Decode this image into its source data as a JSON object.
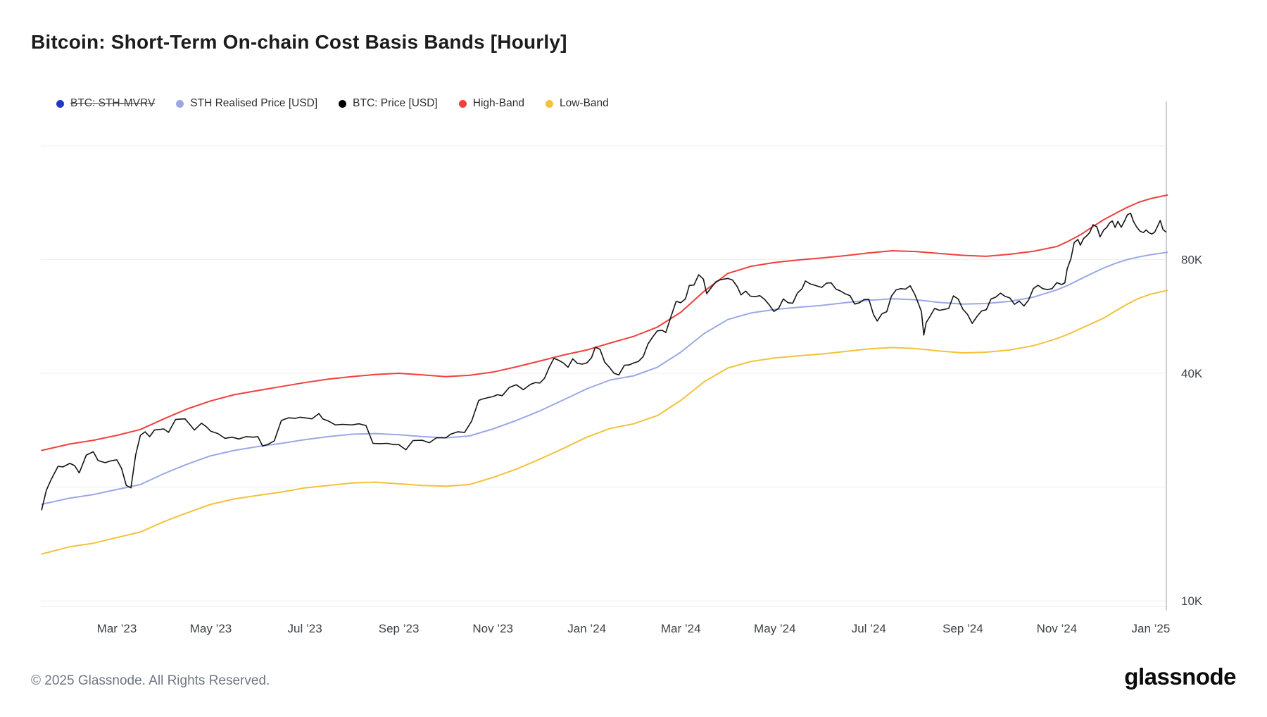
{
  "page": {
    "title": "Bitcoin: Short-Term On-chain Cost Basis Bands [Hourly]",
    "footer_copyright": "© 2025 Glassnode. All Rights Reserved.",
    "brand": "glassnode"
  },
  "legend": [
    {
      "label": "BTC: STH-MVRV",
      "color": "#2237c5",
      "disabled": true
    },
    {
      "label": "STH Realised Price [USD]",
      "color": "#9aa8e6",
      "disabled": false
    },
    {
      "label": "BTC: Price [USD]",
      "color": "#000000",
      "disabled": false
    },
    {
      "label": "High-Band",
      "color": "#ef403c",
      "disabled": false
    },
    {
      "label": "Low-Band",
      "color": "#f3c13c",
      "disabled": false
    }
  ],
  "chart_data": {
    "type": "line",
    "title": "Bitcoin: Short-Term On-chain Cost Basis Bands [Hourly]",
    "x_unit": "months since 2023-01-01",
    "xlim": [
      0.4,
      24.38
    ],
    "ylim": [
      9700,
      192000
    ],
    "grid": "horizontal-only",
    "legend_position": "top-left",
    "x_axis": {
      "ticks": [
        {
          "m": 2,
          "label": "Mar ’23"
        },
        {
          "m": 4,
          "label": "May ’23"
        },
        {
          "m": 6,
          "label": "Jul ’23"
        },
        {
          "m": 8,
          "label": "Sep ’23"
        },
        {
          "m": 10,
          "label": "Nov ’23"
        },
        {
          "m": 12,
          "label": "Jan ’24"
        },
        {
          "m": 14,
          "label": "Mar ’24"
        },
        {
          "m": 16,
          "label": "May ’24"
        },
        {
          "m": 18,
          "label": "Jul ’24"
        },
        {
          "m": 20,
          "label": "Sep ’24"
        },
        {
          "m": 22,
          "label": "Nov ’24"
        },
        {
          "m": 24,
          "label": "Jan ’25"
        }
      ]
    },
    "y_axis": {
      "scale": "log",
      "gridlines": [
        {
          "v": 10000,
          "label": "10K"
        },
        {
          "v": 20000,
          "label": ""
        },
        {
          "v": 40000,
          "label": "40K"
        },
        {
          "v": 80000,
          "label": "80K"
        },
        {
          "v": 160000,
          "label": ""
        }
      ]
    },
    "series": [
      {
        "name": "STH Realised Price [USD]",
        "color": "#9aa8e6",
        "width": 2,
        "x": [
          0.4,
          1,
          1.5,
          2,
          2.5,
          3,
          3.5,
          4,
          4.5,
          5,
          5.5,
          6,
          6.5,
          7,
          7.5,
          8,
          8.5,
          9,
          9.5,
          10,
          10.5,
          11,
          11.5,
          12,
          12.5,
          13,
          13.5,
          14,
          14.5,
          15,
          15.5,
          16,
          16.5,
          17,
          17.5,
          18,
          18.5,
          19,
          19.5,
          20,
          20.5,
          21,
          21.5,
          22,
          22.25,
          22.5,
          22.75,
          23,
          23.25,
          23.5,
          23.75,
          24,
          24.35
        ],
        "y": [
          18000,
          18700,
          19100,
          19700,
          20300,
          21700,
          23000,
          24200,
          25000,
          25600,
          26100,
          26700,
          27200,
          27600,
          27700,
          27500,
          27200,
          27000,
          27300,
          28500,
          30000,
          31800,
          34000,
          36400,
          38400,
          39400,
          41500,
          45500,
          51000,
          55500,
          57800,
          59000,
          59800,
          60500,
          61500,
          62400,
          63000,
          62600,
          61600,
          61000,
          61200,
          62000,
          63600,
          66500,
          68500,
          71000,
          73500,
          76000,
          78200,
          80000,
          81300,
          82400,
          83600
        ]
      },
      {
        "name": "Low-Band",
        "color": "#f3c13c",
        "width": 2,
        "x": [
          0.4,
          1,
          1.5,
          2,
          2.5,
          3,
          3.5,
          4,
          4.5,
          5,
          5.5,
          6,
          6.5,
          7,
          7.5,
          8,
          8.5,
          9,
          9.5,
          10,
          10.5,
          11,
          11.5,
          12,
          12.5,
          13,
          13.5,
          14,
          14.5,
          15,
          15.5,
          16,
          16.5,
          17,
          17.5,
          18,
          18.5,
          19,
          19.5,
          20,
          20.5,
          21,
          21.5,
          22,
          22.25,
          22.5,
          22.75,
          23,
          23.25,
          23.5,
          23.75,
          24,
          24.35
        ],
        "y": [
          13300,
          13900,
          14200,
          14700,
          15200,
          16200,
          17100,
          18000,
          18600,
          19000,
          19400,
          19900,
          20200,
          20500,
          20600,
          20400,
          20200,
          20100,
          20300,
          21200,
          22300,
          23700,
          25300,
          27100,
          28600,
          29400,
          30900,
          33900,
          38000,
          41300,
          43000,
          43900,
          44500,
          45000,
          45700,
          46400,
          46800,
          46500,
          45800,
          45300,
          45500,
          46100,
          47300,
          49400,
          50800,
          52500,
          54200,
          56000,
          58500,
          61000,
          63200,
          64800,
          66300
        ]
      },
      {
        "name": "High-Band",
        "color": "#ef403c",
        "width": 2,
        "x": [
          0.4,
          1,
          1.5,
          2,
          2.5,
          3,
          3.5,
          4,
          4.5,
          5,
          5.5,
          6,
          6.5,
          7,
          7.5,
          8,
          8.5,
          9,
          9.5,
          10,
          10.5,
          11,
          11.5,
          12,
          12.5,
          13,
          13.5,
          14,
          14.5,
          15,
          15.5,
          16,
          16.5,
          17,
          17.5,
          18,
          18.5,
          19,
          19.5,
          20,
          20.5,
          21,
          21.5,
          22,
          22.25,
          22.5,
          22.75,
          23,
          23.25,
          23.5,
          23.75,
          24,
          24.35
        ],
        "y": [
          25000,
          26000,
          26600,
          27400,
          28400,
          30300,
          32200,
          33800,
          35100,
          36000,
          36900,
          37800,
          38600,
          39200,
          39700,
          40000,
          39600,
          39200,
          39500,
          40300,
          41600,
          43100,
          44700,
          46100,
          48100,
          50100,
          53000,
          58000,
          66000,
          73500,
          76800,
          78600,
          79800,
          80800,
          81900,
          83300,
          84400,
          84000,
          83000,
          82100,
          81600,
          82600,
          84100,
          86600,
          89500,
          93000,
          97500,
          102000,
          106000,
          110000,
          113500,
          116000,
          118500
        ]
      },
      {
        "name": "BTC: Price [USD]",
        "color": "#141414",
        "width": 1.6,
        "x": [
          0.4,
          0.5,
          0.6,
          0.75,
          0.85,
          1.0,
          1.1,
          1.2,
          1.35,
          1.5,
          1.6,
          1.75,
          1.9,
          2.0,
          2.1,
          2.2,
          2.3,
          2.4,
          2.5,
          2.6,
          2.7,
          2.8,
          3.0,
          3.1,
          3.25,
          3.45,
          3.55,
          3.65,
          3.8,
          3.9,
          4.0,
          4.15,
          4.3,
          4.45,
          4.6,
          4.75,
          4.9,
          5.0,
          5.1,
          5.2,
          5.35,
          5.5,
          5.65,
          5.8,
          5.9,
          6.0,
          6.15,
          6.3,
          6.38,
          6.5,
          6.65,
          6.8,
          7.0,
          7.15,
          7.3,
          7.45,
          7.6,
          7.75,
          7.9,
          8.0,
          8.15,
          8.3,
          8.5,
          8.65,
          8.8,
          9.0,
          9.1,
          9.25,
          9.4,
          9.55,
          9.7,
          9.78,
          9.9,
          10.0,
          10.1,
          10.2,
          10.35,
          10.5,
          10.65,
          10.8,
          10.9,
          11.0,
          11.1,
          11.2,
          11.3,
          11.4,
          11.5,
          11.6,
          11.7,
          11.8,
          11.9,
          12.0,
          12.1,
          12.18,
          12.28,
          12.38,
          12.48,
          12.58,
          12.68,
          12.8,
          12.9,
          13.0,
          13.1,
          13.2,
          13.3,
          13.4,
          13.5,
          13.6,
          13.68,
          13.8,
          13.9,
          14.0,
          14.1,
          14.18,
          14.28,
          14.38,
          14.48,
          14.55,
          14.65,
          14.75,
          14.85,
          15.0,
          15.1,
          15.2,
          15.28,
          15.38,
          15.48,
          15.58,
          15.68,
          15.78,
          15.88,
          15.98,
          16.08,
          16.18,
          16.28,
          16.38,
          16.48,
          16.58,
          16.65,
          16.75,
          16.85,
          17.0,
          17.1,
          17.2,
          17.3,
          17.4,
          17.5,
          17.6,
          17.7,
          17.8,
          17.9,
          18.0,
          18.1,
          18.18,
          18.28,
          18.38,
          18.48,
          18.58,
          18.68,
          18.78,
          18.88,
          18.98,
          19.05,
          19.12,
          19.17,
          19.22,
          19.3,
          19.4,
          19.5,
          19.6,
          19.7,
          19.8,
          19.9,
          20.0,
          20.1,
          20.2,
          20.3,
          20.4,
          20.5,
          20.6,
          20.7,
          20.8,
          20.9,
          21.0,
          21.1,
          21.2,
          21.3,
          21.4,
          21.5,
          21.6,
          21.7,
          21.8,
          21.9,
          22.0,
          22.1,
          22.17,
          22.22,
          22.3,
          22.37,
          22.45,
          22.5,
          22.57,
          22.63,
          22.7,
          22.77,
          22.85,
          22.92,
          23.0,
          23.06,
          23.12,
          23.18,
          23.24,
          23.3,
          23.37,
          23.44,
          23.5,
          23.57,
          23.63,
          23.7,
          23.77,
          23.84,
          23.9,
          23.96,
          24.02,
          24.08,
          24.14,
          24.2,
          24.26,
          24.32
        ],
        "y": [
          17400,
          19600,
          20900,
          22700,
          22600,
          23100,
          22800,
          21800,
          24300,
          24800,
          23500,
          23200,
          23500,
          23600,
          22400,
          20200,
          19900,
          24300,
          27400,
          28000,
          27200,
          28300,
          28500,
          27900,
          30200,
          30300,
          29300,
          28300,
          29500,
          28900,
          28100,
          27700,
          26900,
          27100,
          26800,
          27200,
          27100,
          27200,
          25700,
          25900,
          26500,
          30000,
          30500,
          30400,
          30600,
          30500,
          30300,
          31300,
          30300,
          29900,
          29200,
          29300,
          29200,
          29400,
          29100,
          26100,
          26050,
          26100,
          25900,
          25900,
          25100,
          26550,
          26600,
          26200,
          27000,
          27000,
          27600,
          28000,
          27900,
          29900,
          33900,
          34200,
          34500,
          34700,
          35100,
          34900,
          36700,
          37300,
          36200,
          37400,
          37800,
          37700,
          38800,
          41500,
          43800,
          43300,
          42600,
          41500,
          43700,
          42500,
          42300,
          42600,
          44000,
          46900,
          46300,
          42800,
          41500,
          40000,
          39600,
          42000,
          42100,
          42600,
          43000,
          44300,
          47800,
          49900,
          51800,
          52000,
          51300,
          57000,
          62000,
          61500,
          63000,
          68300,
          68500,
          72900,
          71000,
          65000,
          67500,
          69900,
          70800,
          71300,
          70600,
          67800,
          64500,
          66000,
          64000,
          63800,
          64200,
          62800,
          60700,
          58300,
          59400,
          62900,
          61500,
          61300,
          65200,
          67000,
          70200,
          69000,
          68400,
          67500,
          69300,
          69400,
          66800,
          66000,
          64900,
          64200,
          61000,
          61500,
          62700,
          62800,
          57200,
          55000,
          57500,
          58200,
          64000,
          66500,
          67000,
          66800,
          68200,
          64600,
          61400,
          58200,
          50500,
          54500,
          56500,
          59400,
          58700,
          59000,
          59400,
          64100,
          62900,
          59100,
          57300,
          54200,
          56500,
          58500,
          58900,
          62900,
          63600,
          65200,
          63900,
          63300,
          60900,
          62100,
          60300,
          62500,
          67000,
          68400,
          67000,
          66600,
          67000,
          69500,
          68700,
          69400,
          75600,
          80400,
          88700,
          90400,
          87300,
          91000,
          92300,
          94300,
          98900,
          97700,
          91900,
          95900,
          97200,
          99900,
          101200,
          97300,
          100900,
          97400,
          101100,
          105000,
          106100,
          101000,
          97500,
          95100,
          94300,
          95800,
          94200,
          93500,
          94400,
          97800,
          101500,
          96000,
          94700
        ]
      }
    ]
  }
}
